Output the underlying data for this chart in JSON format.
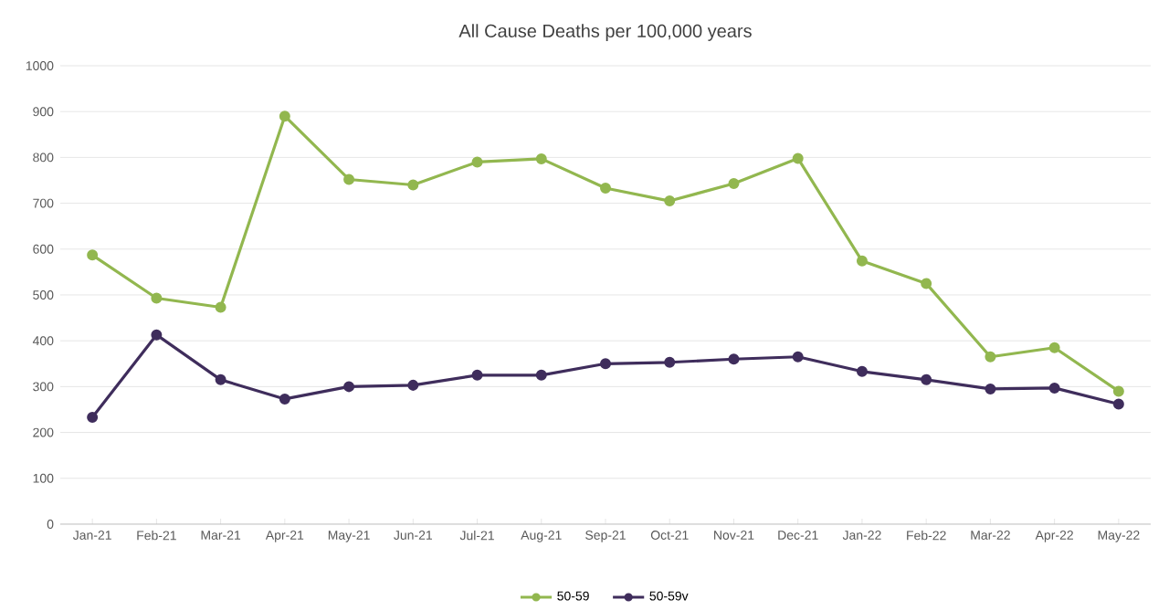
{
  "chart_data": {
    "type": "line",
    "title": "All Cause Deaths per 100,000 years",
    "categories": [
      "Jan-21",
      "Feb-21",
      "Mar-21",
      "Apr-21",
      "May-21",
      "Jun-21",
      "Jul-21",
      "Aug-21",
      "Sep-21",
      "Oct-21",
      "Nov-21",
      "Dec-21",
      "Jan-22",
      "Feb-22",
      "Mar-22",
      "Apr-22",
      "May-22"
    ],
    "series": [
      {
        "name": "50-59",
        "color": "#92b74f",
        "values": [
          587,
          493,
          473,
          890,
          752,
          740,
          790,
          797,
          733,
          705,
          743,
          798,
          574,
          525,
          365,
          385,
          290
        ]
      },
      {
        "name": "50-59v",
        "color": "#3f2d5c",
        "values": [
          233,
          413,
          315,
          273,
          300,
          303,
          325,
          325,
          350,
          353,
          360,
          365,
          333,
          315,
          295,
          297,
          262
        ]
      }
    ],
    "ylim": [
      0,
      1000
    ],
    "yticks": [
      0,
      100,
      200,
      300,
      400,
      500,
      600,
      700,
      800,
      900,
      1000
    ],
    "grid": "y",
    "legend": "bottom",
    "marker": "circle",
    "line_style": "solid"
  }
}
